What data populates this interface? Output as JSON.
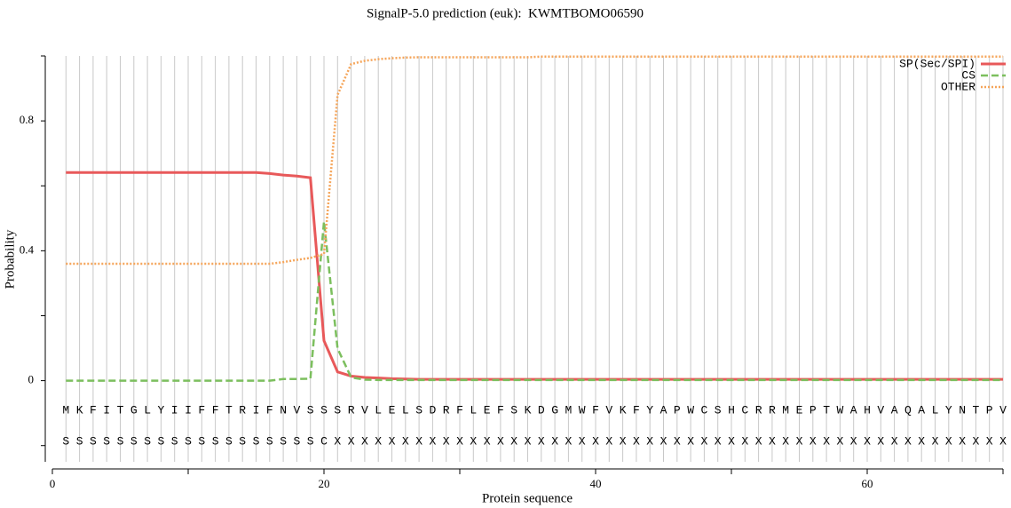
{
  "chart_data": {
    "type": "line",
    "title": "SignalP-5.0 prediction (euk):  KWMTBOMO06590",
    "xlabel": "Protein sequence",
    "ylabel": "Probability",
    "xlim": [
      0,
      70
    ],
    "xticks": [
      0,
      20,
      40,
      60
    ],
    "xminorticks": [
      10,
      30,
      50,
      70
    ],
    "ylim": [
      -0.25,
      1.0
    ],
    "yticks": [
      0,
      0.4,
      0.8
    ],
    "yminorticks": [
      -0.2,
      0.2,
      0.6,
      1.0
    ],
    "grid": true,
    "legend": "upper right",
    "x": [
      1,
      2,
      3,
      4,
      5,
      6,
      7,
      8,
      9,
      10,
      11,
      12,
      13,
      14,
      15,
      16,
      17,
      18,
      19,
      20,
      21,
      22,
      23,
      24,
      25,
      26,
      27,
      28,
      29,
      30,
      31,
      32,
      33,
      34,
      35,
      36,
      37,
      38,
      39,
      40,
      41,
      42,
      43,
      44,
      45,
      46,
      47,
      48,
      49,
      50,
      51,
      52,
      53,
      54,
      55,
      56,
      57,
      58,
      59,
      60,
      61,
      62,
      63,
      64,
      65,
      66,
      67,
      68,
      69,
      70
    ],
    "sequence": [
      "M",
      "K",
      "F",
      "I",
      "T",
      "G",
      "L",
      "Y",
      "I",
      "I",
      "F",
      "F",
      "T",
      "R",
      "I",
      "F",
      "N",
      "V",
      "S",
      "S",
      "S",
      "R",
      "V",
      "L",
      "E",
      "L",
      "S",
      "D",
      "R",
      "F",
      "L",
      "E",
      "F",
      "S",
      "K",
      "D",
      "G",
      "M",
      "W",
      "F",
      "V",
      "K",
      "F",
      "Y",
      "A",
      "P",
      "W",
      "C",
      "S",
      "H",
      "C",
      "R",
      "R",
      "M",
      "E",
      "P",
      "T",
      "W",
      "A",
      "H",
      "V",
      "A",
      "Q",
      "A",
      "L",
      "Y",
      "N",
      "T",
      "P",
      "V"
    ],
    "annotations": [
      "S",
      "S",
      "S",
      "S",
      "S",
      "S",
      "S",
      "S",
      "S",
      "S",
      "S",
      "S",
      "S",
      "S",
      "S",
      "S",
      "S",
      "S",
      "S",
      "C",
      "X",
      "X",
      "X",
      "X",
      "X",
      "X",
      "X",
      "X",
      "X",
      "X",
      "X",
      "X",
      "X",
      "X",
      "X",
      "X",
      "X",
      "X",
      "X",
      "X",
      "X",
      "X",
      "X",
      "X",
      "X",
      "X",
      "X",
      "X",
      "X",
      "X",
      "X",
      "X",
      "X",
      "X",
      "X",
      "X",
      "X",
      "X",
      "X",
      "X",
      "X",
      "X",
      "X",
      "X",
      "X",
      "X",
      "X",
      "X",
      "X",
      "X"
    ],
    "series": [
      {
        "name": "SP(Sec/SPI)",
        "color": "#e8595a",
        "style": "solid",
        "values": [
          0.641,
          0.641,
          0.641,
          0.641,
          0.641,
          0.641,
          0.641,
          0.641,
          0.641,
          0.641,
          0.641,
          0.641,
          0.641,
          0.641,
          0.641,
          0.638,
          0.633,
          0.63,
          0.625,
          0.123,
          0.027,
          0.014,
          0.01,
          0.008,
          0.006,
          0.005,
          0.004,
          0.004,
          0.004,
          0.004,
          0.004,
          0.004,
          0.004,
          0.004,
          0.004,
          0.004,
          0.004,
          0.004,
          0.004,
          0.004,
          0.004,
          0.004,
          0.004,
          0.004,
          0.004,
          0.004,
          0.004,
          0.004,
          0.004,
          0.004,
          0.004,
          0.004,
          0.004,
          0.004,
          0.004,
          0.004,
          0.004,
          0.004,
          0.004,
          0.004,
          0.004,
          0.004,
          0.004,
          0.004,
          0.004,
          0.004,
          0.004,
          0.004,
          0.004,
          0.004
        ]
      },
      {
        "name": "CS",
        "color": "#7cbf5e",
        "style": "dashed",
        "values": [
          0,
          0,
          0,
          0,
          0,
          0,
          0,
          0,
          0,
          0,
          0,
          0,
          0,
          0,
          0,
          0,
          0.005,
          0.005,
          0.006,
          0.49,
          0.099,
          0.01,
          0.003,
          0.002,
          0.002,
          0.002,
          0.002,
          0.002,
          0.002,
          0.002,
          0.002,
          0.002,
          0.002,
          0.002,
          0.002,
          0.002,
          0.002,
          0.002,
          0.002,
          0.002,
          0.002,
          0.002,
          0.002,
          0.002,
          0.002,
          0.002,
          0.002,
          0.002,
          0.002,
          0.002,
          0.002,
          0.002,
          0.002,
          0.002,
          0.002,
          0.002,
          0.002,
          0.002,
          0.002,
          0.002,
          0.002,
          0.002,
          0.002,
          0.002,
          0.002,
          0.002,
          0.002,
          0.002,
          0.002,
          0.002
        ]
      },
      {
        "name": "OTHER",
        "color": "#f5a55a",
        "style": "dotted",
        "values": [
          0.36,
          0.36,
          0.36,
          0.36,
          0.36,
          0.36,
          0.36,
          0.36,
          0.36,
          0.36,
          0.36,
          0.36,
          0.36,
          0.36,
          0.36,
          0.36,
          0.365,
          0.372,
          0.378,
          0.39,
          0.88,
          0.975,
          0.985,
          0.99,
          0.993,
          0.995,
          0.996,
          0.996,
          0.996,
          0.996,
          0.996,
          0.996,
          0.996,
          0.996,
          0.996,
          0.998,
          0.998,
          0.998,
          0.998,
          0.998,
          0.998,
          0.998,
          0.998,
          0.998,
          0.998,
          0.998,
          0.998,
          0.998,
          0.998,
          0.998,
          0.998,
          0.998,
          0.998,
          0.998,
          0.998,
          0.998,
          0.998,
          0.998,
          0.998,
          0.998,
          0.998,
          0.998,
          0.998,
          0.998,
          0.998,
          0.998,
          0.998,
          0.998,
          0.998,
          0.998
        ]
      }
    ]
  }
}
